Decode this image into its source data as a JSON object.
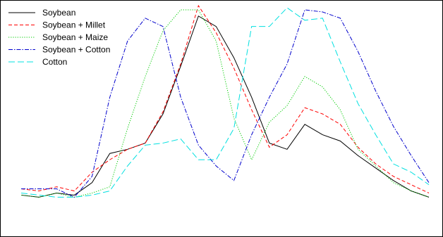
{
  "chart_data": {
    "type": "line",
    "title": "",
    "xlabel": "",
    "ylabel": "",
    "x": [
      1,
      2,
      3,
      4,
      5,
      6,
      7,
      8,
      9,
      10,
      11,
      12,
      13,
      14,
      15,
      16,
      17,
      18,
      19,
      20,
      21,
      22,
      23,
      24
    ],
    "xlim": [
      1,
      24
    ],
    "ylim": [
      0,
      1
    ],
    "grid": false,
    "axes_visible": false,
    "legend": {
      "placement": "top-left",
      "visible": true
    },
    "series": [
      {
        "name": "Soybean",
        "color": "#000000",
        "dash": "solid",
        "values": [
          0.11,
          0.1,
          0.12,
          0.11,
          0.17,
          0.31,
          0.33,
          0.36,
          0.5,
          0.73,
          0.97,
          0.92,
          0.77,
          0.58,
          0.36,
          0.33,
          0.45,
          0.4,
          0.37,
          0.3,
          0.24,
          0.18,
          0.13,
          0.1
        ]
      },
      {
        "name": "Soybean + Millet",
        "color": "#ff0000",
        "dash": "dashed",
        "values": [
          0.14,
          0.13,
          0.15,
          0.13,
          0.22,
          0.28,
          0.33,
          0.36,
          0.51,
          0.74,
          1.02,
          0.89,
          0.72,
          0.52,
          0.34,
          0.4,
          0.53,
          0.5,
          0.45,
          0.34,
          0.26,
          0.2,
          0.16,
          0.12
        ]
      },
      {
        "name": "Soybean + Maize",
        "color": "#00cc00",
        "dash": "dotted",
        "values": [
          0.11,
          0.1,
          0.12,
          0.1,
          0.12,
          0.15,
          0.43,
          0.68,
          0.9,
          1.0,
          1.0,
          0.85,
          0.48,
          0.28,
          0.46,
          0.54,
          0.68,
          0.63,
          0.52,
          0.33,
          0.25,
          0.17,
          0.13,
          0.1
        ]
      },
      {
        "name": "Soybean + Cotton",
        "color": "#0000cc",
        "dash": "dashdot",
        "values": [
          0.14,
          0.14,
          0.14,
          0.1,
          0.2,
          0.58,
          0.85,
          0.96,
          0.92,
          0.58,
          0.35,
          0.25,
          0.18,
          0.4,
          0.58,
          0.74,
          1.0,
          0.99,
          0.96,
          0.8,
          0.61,
          0.44,
          0.3,
          0.17
        ]
      },
      {
        "name": "Cotton",
        "color": "#00e0e0",
        "dash": "longdash",
        "values": [
          0.12,
          0.11,
          0.1,
          0.1,
          0.11,
          0.13,
          0.25,
          0.35,
          0.36,
          0.38,
          0.28,
          0.28,
          0.43,
          0.92,
          0.92,
          1.01,
          0.95,
          0.96,
          0.75,
          0.55,
          0.4,
          0.26,
          0.22,
          0.16
        ]
      }
    ]
  }
}
